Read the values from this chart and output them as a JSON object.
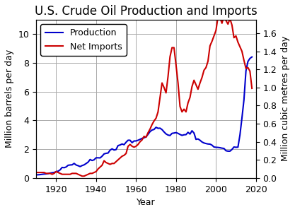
{
  "title": "U.S. Crude Oil Production and Imports",
  "xlabel": "Year",
  "ylabel_left": "Million barrels per day",
  "ylabel_right": "Million cubic metres per day",
  "xlim": [
    1910,
    2020
  ],
  "ylim_left": [
    0,
    11
  ],
  "ylim_right": [
    0,
    1.749
  ],
  "yticks_left": [
    0,
    2,
    4,
    6,
    8,
    10
  ],
  "yticks_right": [
    0,
    0.2,
    0.4,
    0.6,
    0.8,
    1.0,
    1.2,
    1.4,
    1.6
  ],
  "xticks": [
    1920,
    1940,
    1960,
    1980,
    2000,
    2020
  ],
  "production_color": "#0000cc",
  "imports_color": "#cc0000",
  "prod_years": [
    1910,
    1911,
    1912,
    1913,
    1914,
    1915,
    1916,
    1917,
    1918,
    1919,
    1920,
    1921,
    1922,
    1923,
    1924,
    1925,
    1926,
    1927,
    1928,
    1929,
    1930,
    1931,
    1932,
    1933,
    1934,
    1935,
    1936,
    1937,
    1938,
    1939,
    1940,
    1941,
    1942,
    1943,
    1944,
    1945,
    1946,
    1947,
    1948,
    1949,
    1950,
    1951,
    1952,
    1953,
    1954,
    1955,
    1956,
    1957,
    1958,
    1959,
    1960,
    1961,
    1962,
    1963,
    1964,
    1965,
    1966,
    1967,
    1968,
    1969,
    1970,
    1971,
    1972,
    1973,
    1974,
    1975,
    1976,
    1977,
    1978,
    1979,
    1980,
    1981,
    1982,
    1983,
    1984,
    1985,
    1986,
    1987,
    1988,
    1989,
    1990,
    1991,
    1992,
    1993,
    1994,
    1995,
    1996,
    1997,
    1998,
    1999,
    2000,
    2001,
    2002,
    2003,
    2004,
    2005,
    2006,
    2007,
    2008,
    2009,
    2010,
    2011,
    2012,
    2013,
    2014,
    2015,
    2016,
    2017,
    2018
  ],
  "prod_values": [
    0.21,
    0.22,
    0.23,
    0.25,
    0.27,
    0.28,
    0.3,
    0.34,
    0.36,
    0.38,
    0.44,
    0.47,
    0.56,
    0.73,
    0.71,
    0.76,
    0.88,
    0.9,
    0.91,
    1.01,
    0.9,
    0.85,
    0.79,
    0.86,
    0.91,
    1.0,
    1.1,
    1.28,
    1.21,
    1.26,
    1.4,
    1.4,
    1.39,
    1.51,
    1.67,
    1.71,
    1.73,
    1.93,
    2.02,
    1.94,
    1.97,
    2.25,
    2.29,
    2.36,
    2.31,
    2.48,
    2.62,
    2.62,
    2.45,
    2.57,
    2.57,
    2.62,
    2.68,
    2.75,
    2.79,
    2.85,
    3.03,
    3.22,
    3.33,
    3.37,
    3.52,
    3.45,
    3.46,
    3.36,
    3.2,
    3.06,
    2.98,
    2.95,
    3.1,
    3.12,
    3.15,
    3.1,
    3.02,
    2.96,
    3.0,
    3.01,
    3.17,
    3.05,
    3.28,
    3.12,
    2.68,
    2.71,
    2.62,
    2.5,
    2.43,
    2.39,
    2.36,
    2.35,
    2.28,
    2.15,
    2.13,
    2.12,
    2.1,
    2.07,
    2.05,
    1.89,
    1.86,
    1.86,
    1.98,
    2.15,
    2.13,
    2.14,
    2.99,
    4.17,
    5.43,
    7.44,
    8.1,
    8.31,
    8.41
  ],
  "imp_years": [
    1910,
    1911,
    1912,
    1913,
    1914,
    1915,
    1916,
    1917,
    1918,
    1919,
    1920,
    1921,
    1922,
    1923,
    1924,
    1925,
    1926,
    1927,
    1928,
    1929,
    1930,
    1931,
    1932,
    1933,
    1934,
    1935,
    1936,
    1937,
    1938,
    1939,
    1940,
    1941,
    1942,
    1943,
    1944,
    1945,
    1946,
    1947,
    1948,
    1949,
    1950,
    1951,
    1952,
    1953,
    1954,
    1955,
    1956,
    1957,
    1958,
    1959,
    1960,
    1961,
    1962,
    1963,
    1964,
    1965,
    1966,
    1967,
    1968,
    1969,
    1970,
    1971,
    1972,
    1973,
    1974,
    1975,
    1976,
    1977,
    1978,
    1979,
    1980,
    1981,
    1982,
    1983,
    1984,
    1985,
    1986,
    1987,
    1988,
    1989,
    1990,
    1991,
    1992,
    1993,
    1994,
    1995,
    1996,
    1997,
    1998,
    1999,
    2000,
    2001,
    2002,
    2003,
    2004,
    2005,
    2006,
    2007,
    2008,
    2009,
    2010,
    2011,
    2012,
    2013,
    2014,
    2015,
    2016,
    2017,
    2018
  ],
  "imp_values": [
    0.06,
    0.06,
    0.06,
    0.06,
    0.06,
    0.05,
    0.05,
    0.05,
    0.04,
    0.05,
    0.07,
    0.06,
    0.05,
    0.04,
    0.04,
    0.04,
    0.04,
    0.04,
    0.05,
    0.05,
    0.05,
    0.04,
    0.03,
    0.02,
    0.02,
    0.03,
    0.04,
    0.05,
    0.05,
    0.06,
    0.07,
    0.1,
    0.12,
    0.14,
    0.19,
    0.17,
    0.16,
    0.15,
    0.16,
    0.16,
    0.18,
    0.2,
    0.22,
    0.24,
    0.25,
    0.27,
    0.35,
    0.37,
    0.35,
    0.34,
    0.35,
    0.37,
    0.4,
    0.42,
    0.46,
    0.45,
    0.5,
    0.54,
    0.59,
    0.63,
    0.66,
    0.73,
    0.89,
    1.05,
    1.0,
    0.94,
    1.12,
    1.34,
    1.44,
    1.44,
    1.25,
    1.05,
    0.79,
    0.73,
    0.76,
    0.73,
    0.83,
    0.89,
    1.01,
    1.08,
    1.03,
    0.98,
    1.05,
    1.11,
    1.19,
    1.22,
    1.29,
    1.46,
    1.51,
    1.57,
    1.63,
    1.78,
    1.77,
    1.71,
    1.79,
    1.74,
    1.7,
    1.76,
    1.69,
    1.55,
    1.57,
    1.5,
    1.45,
    1.4,
    1.3,
    1.21,
    1.22,
    1.18,
    0.99
  ],
  "legend_labels": [
    "Production",
    "Net Imports"
  ],
  "background_color": "#ffffff",
  "grid_color": "#aaaaaa",
  "line_width": 1.5,
  "title_fontsize": 12,
  "axis_fontsize": 9,
  "tick_fontsize": 9
}
